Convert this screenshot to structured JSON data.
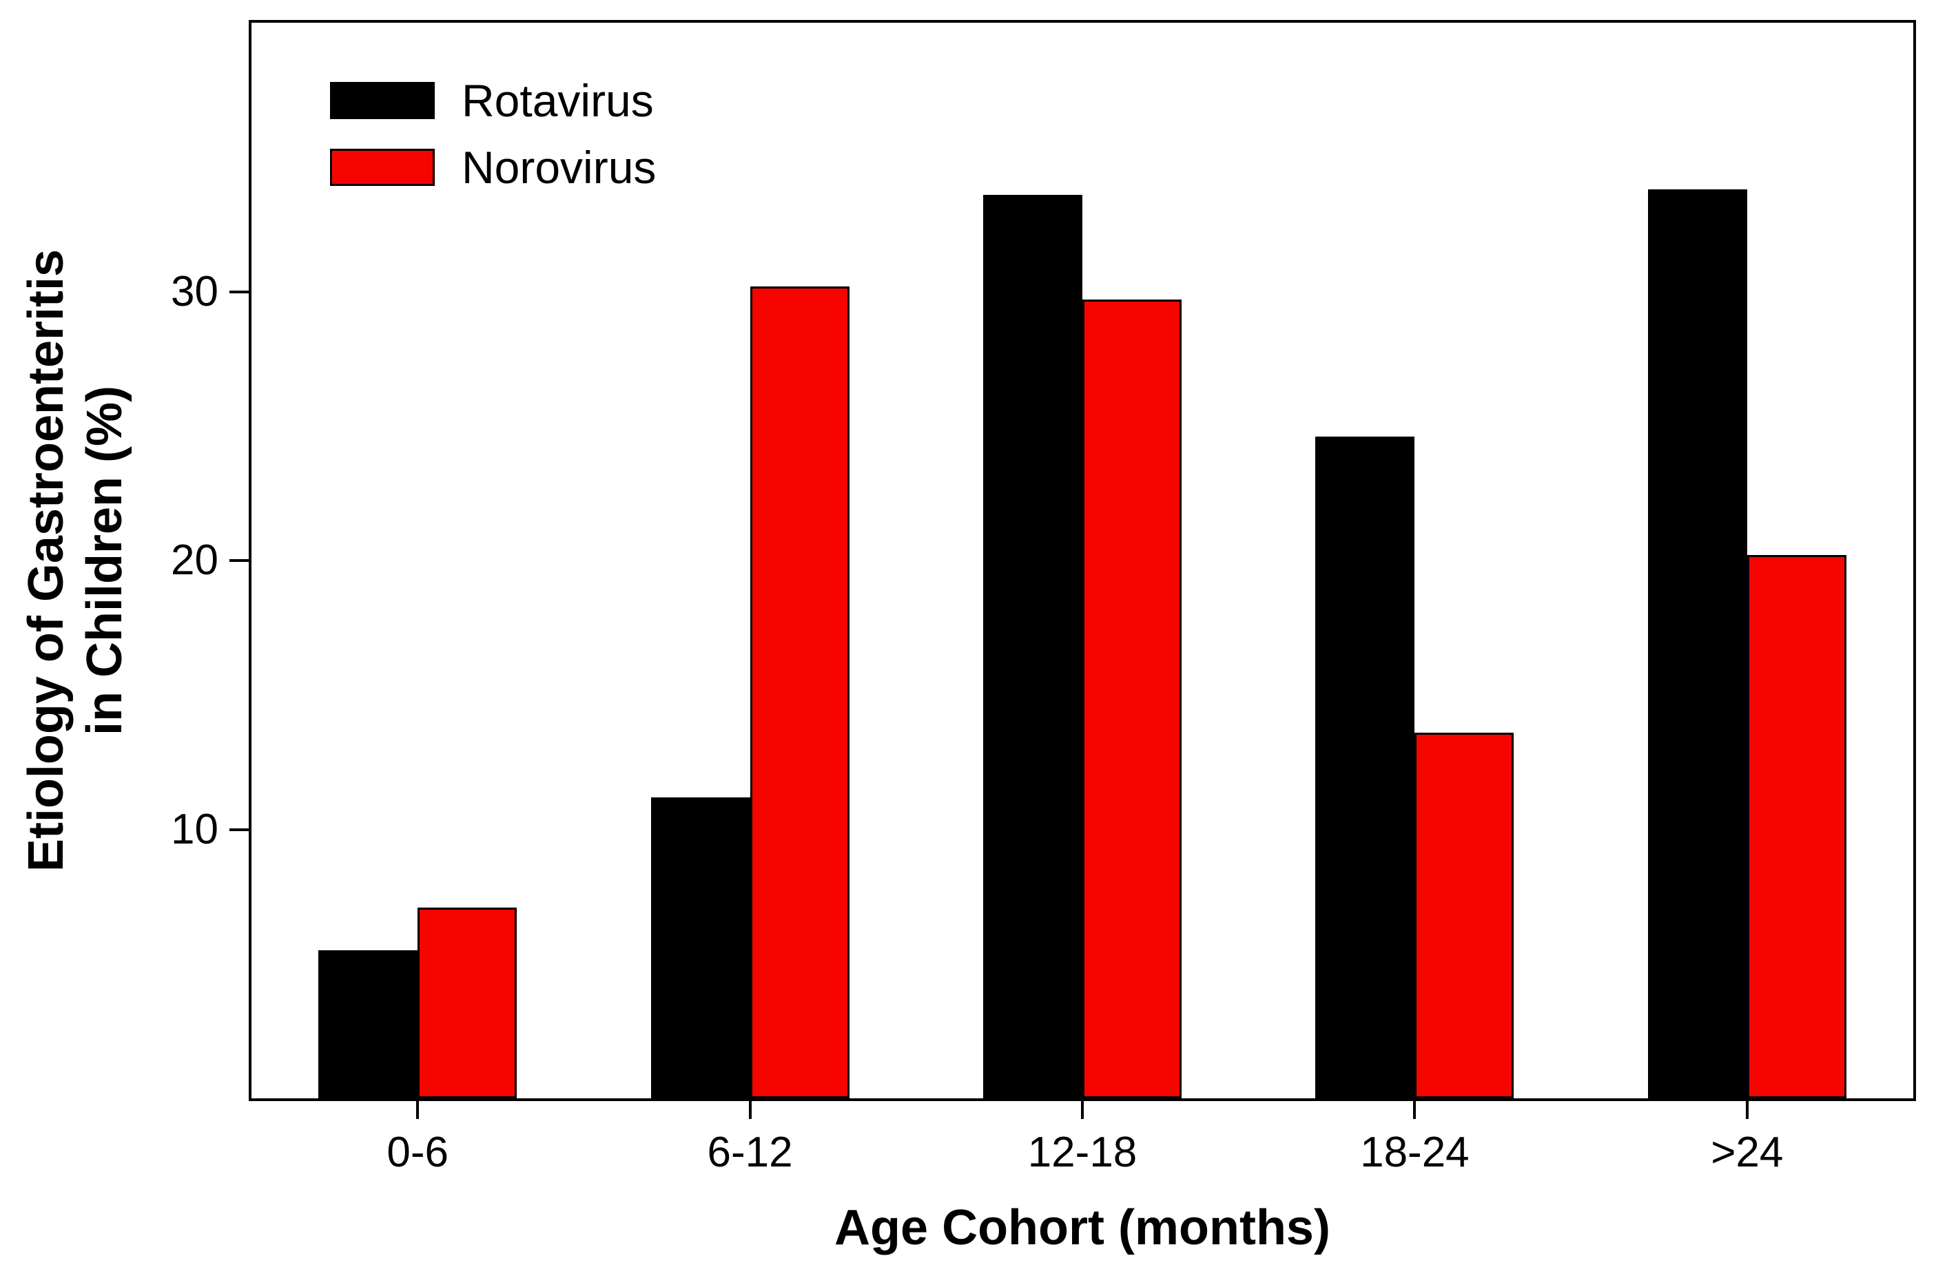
{
  "chart_data": {
    "type": "bar",
    "categories": [
      "0-6",
      "6-12",
      "12-18",
      "18-24",
      ">24"
    ],
    "series": [
      {
        "name": "Rotavirus",
        "color": "#000000",
        "values": [
          5.5,
          11.2,
          33.6,
          24.6,
          33.8
        ]
      },
      {
        "name": "Norovirus",
        "color": "#f60400",
        "values": [
          7.1,
          30.2,
          29.7,
          13.6,
          20.2
        ]
      }
    ],
    "title": "",
    "xlabel": "Age Cohort (months)",
    "ylabel": "Etiology of Gastroenteritis in Children (%)",
    "ylabel_line1": "Etiology of Gastroenteritis",
    "ylabel_line2": "in Children (%)",
    "ylim": [
      0,
      40
    ],
    "yticks": [
      10,
      20,
      30
    ],
    "grid": false,
    "legend_position": "top-left"
  }
}
